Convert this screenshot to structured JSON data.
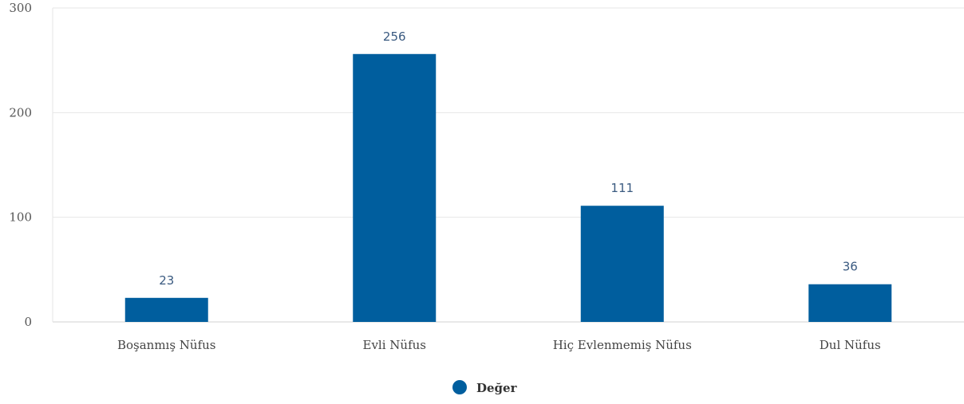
{
  "chart_data": {
    "type": "bar",
    "categories": [
      "Boşanmış Nüfus",
      "Evli Nüfus",
      "Hiç Evlenmemiş Nüfus",
      "Dul Nüfus"
    ],
    "series": [
      {
        "name": "Değer",
        "values": [
          23,
          256,
          111,
          36
        ],
        "color": "#005e9e"
      }
    ],
    "data_labels": [
      "23",
      "256",
      "111",
      "36"
    ],
    "yticks": [
      0,
      100,
      200,
      300
    ],
    "ylim": [
      0,
      300
    ],
    "grid": true,
    "legend_position": "bottom-center"
  }
}
